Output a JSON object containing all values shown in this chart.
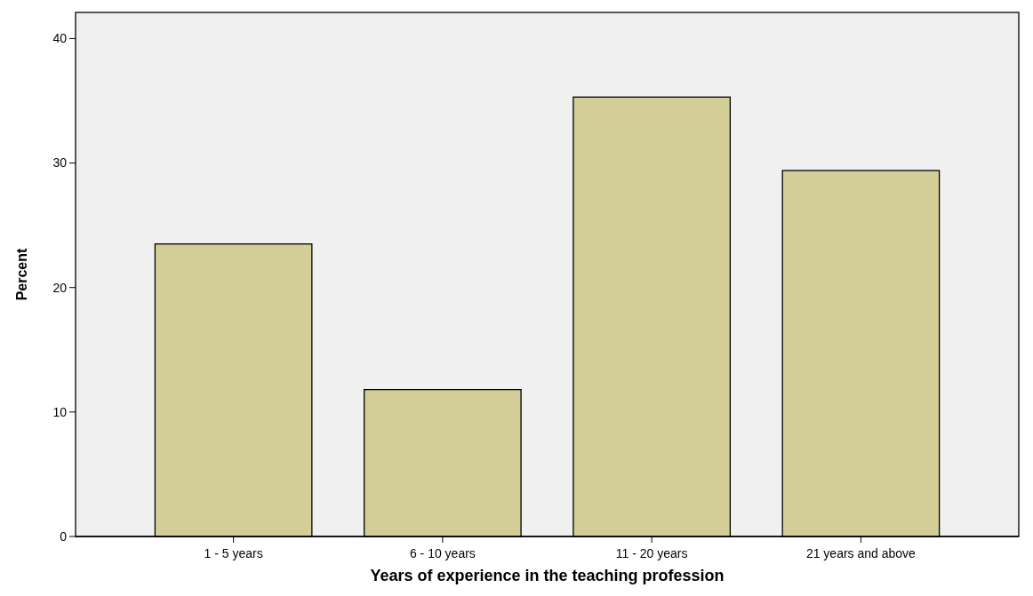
{
  "chart_data": {
    "type": "bar",
    "xlabel": "Years of experience in the teaching profession",
    "ylabel": "Percent",
    "categories": [
      "1 - 5 years",
      "6 - 10 years",
      "11 - 20 years",
      "21 years and above"
    ],
    "values": [
      23.5,
      11.8,
      35.3,
      29.4
    ],
    "color": "#d3ce97",
    "ylim": [
      0,
      42.1
    ],
    "yticks": [
      0,
      10,
      20,
      30,
      40
    ],
    "grid": false
  }
}
